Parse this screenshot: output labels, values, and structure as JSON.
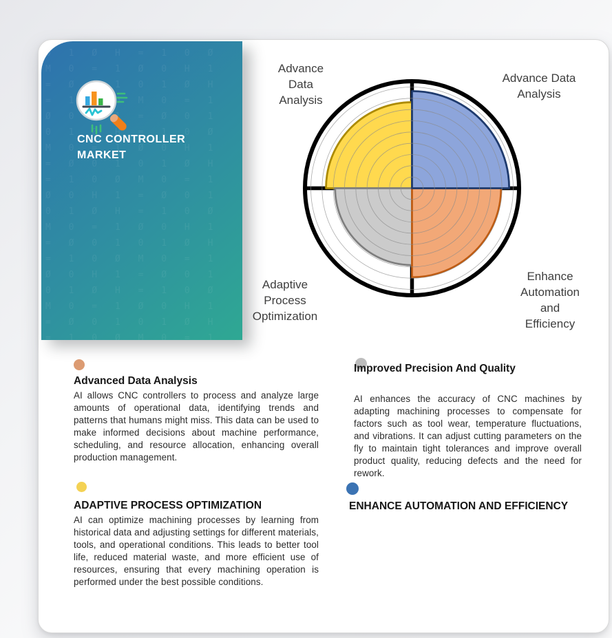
{
  "brand_card": {
    "title_lines": [
      "CNC CONTROLLER",
      "MARKET"
    ],
    "gradient_start": "#2E72AE",
    "gradient_end": "#2FA893",
    "pattern_glyphs": "0 1 Ø H = 1 0 Ø M 0 = 1 Ø 0 H 1 = Ø 0 1 "
  },
  "chart": {
    "labels": {
      "top_left": "Advance Data Analysis",
      "top_right": "Advance Data Analysis",
      "bottom_left": "Adaptive Process Optimization",
      "bottom_right": "Enhance Automation and Efficiency"
    }
  },
  "chart_data": {
    "type": "pie",
    "subtype": "quadrant-polar-area",
    "description": "Circle divided into 4 quadrants by a bold black cross; each quadrant contains a quarter-disc whose radius encodes relative emphasis; 9 thin concentric gridline rings; thick black outer ring.",
    "gridline_rings": 9,
    "grid_color": "#8B8B8B",
    "axis_color": "#000000",
    "outer_ring_color": "#000000",
    "segments": [
      {
        "position": "top-left",
        "label": "Advance Data Analysis",
        "radius_fraction": 0.85,
        "fill": "#FFD94E",
        "edge": "#AD8B00"
      },
      {
        "position": "bottom-left",
        "label": "Adaptive Process Optimization",
        "radius_fraction": 0.76,
        "fill": "#CBCBCB",
        "edge": "#7F7F7F"
      },
      {
        "position": "bottom-right",
        "label": "Enhance Automation and Efficiency",
        "radius_fraction": 0.88,
        "fill": "#F2A877",
        "edge": "#C05C12"
      },
      {
        "position": "top-right",
        "label": "Advance Data Analysis",
        "radius_fraction": 0.96,
        "fill": "#8DA5DB",
        "edge": "#1F3B6E"
      }
    ]
  },
  "info_blocks": [
    {
      "id": "advanced-data-analysis",
      "dot_color": "#DC9B72",
      "heading": "Advanced Data Analysis",
      "body": "AI allows CNC controllers to process and analyze large amounts of operational data, identifying trends and patterns that humans might miss. This data can be used to make informed decisions about machine performance, scheduling, and resource allocation, enhancing overall production management."
    },
    {
      "id": "improved-precision-and-quality",
      "dot_color": "#BDBDBD",
      "heading": "Improved Precision And Quality",
      "body": "AI enhances the accuracy of CNC machines by adapting machining processes to compensate for factors such as tool wear, temperature fluctuations, and vibrations. It can adjust cutting parameters on the fly to maintain tight tolerances and improve overall product quality, reducing defects and the need for rework."
    },
    {
      "id": "adaptive-process-optimization",
      "dot_color": "#F4D254",
      "heading": "ADAPTIVE PROCESS OPTIMIZATION",
      "body": "AI can optimize machining processes by learning from historical data and adjusting settings for different materials, tools, and operational conditions. This leads to better tool life, reduced material waste, and more efficient use of resources, ensuring that every machining operation is performed under the best possible conditions."
    },
    {
      "id": "enhance-automation-and-efficiency",
      "dot_color": "#3B73B3",
      "heading": "ENHANCE AUTOMATION AND EFFICIENCY",
      "body": ""
    }
  ]
}
